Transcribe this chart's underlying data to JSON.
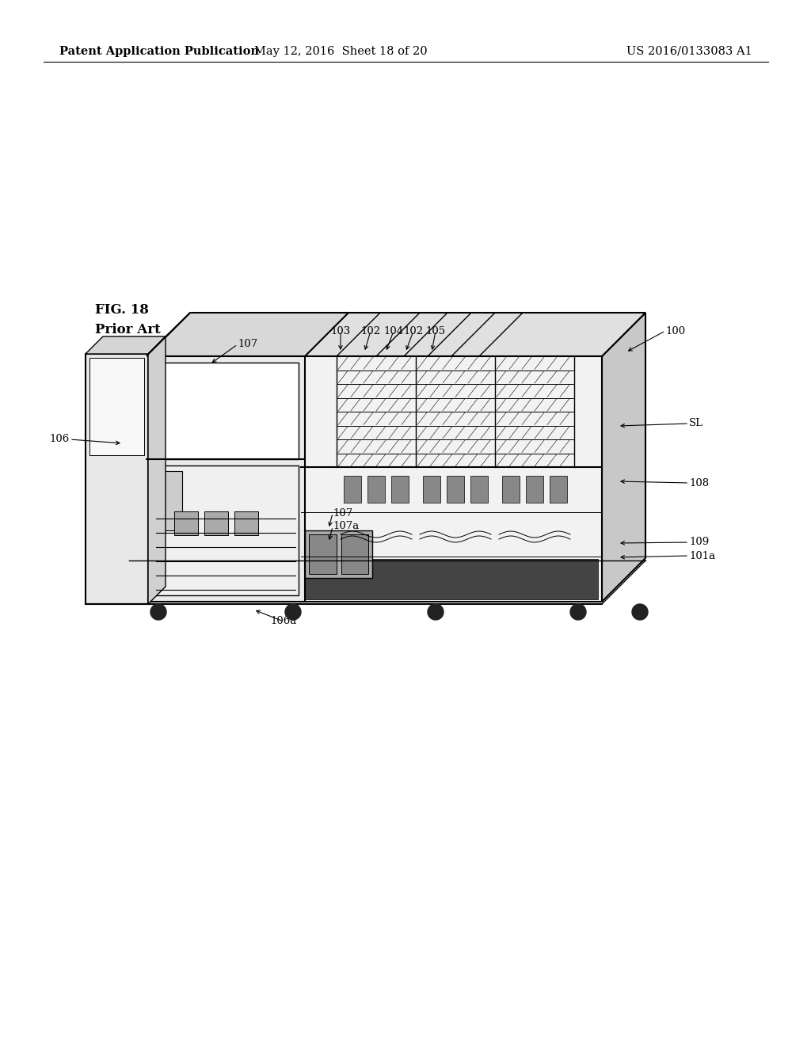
{
  "background_color": "#ffffff",
  "page_width": 10.24,
  "page_height": 13.2,
  "header_text_left": "Patent Application Publication",
  "header_text_mid": "May 12, 2016  Sheet 18 of 20",
  "header_text_right": "US 2016/0133083 A1",
  "fig_label": "FIG. 18",
  "prior_art_label": "Prior Art",
  "font_size_header": 10.5,
  "font_size_annotations": 9.5,
  "font_size_fig": 12
}
